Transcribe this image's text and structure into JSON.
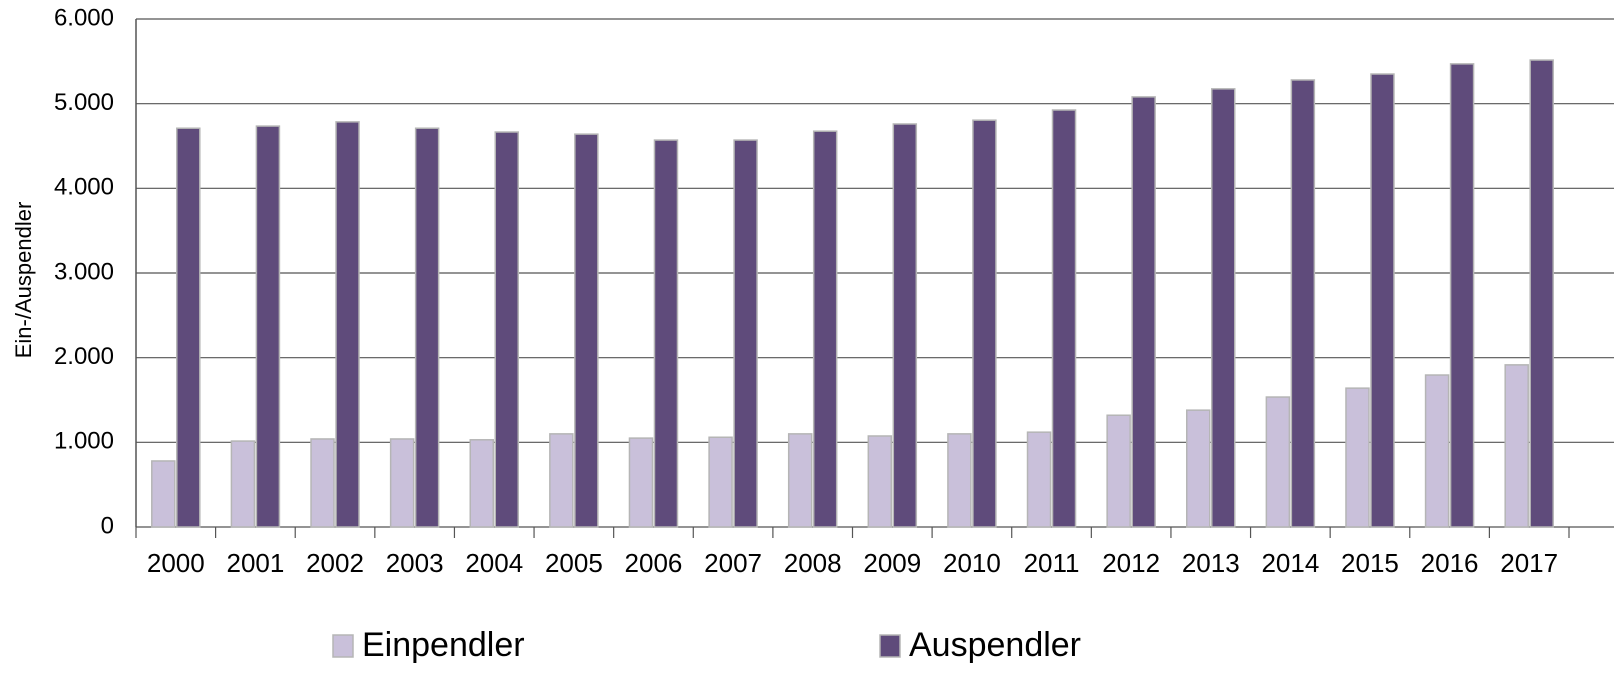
{
  "chart_data": {
    "type": "bar",
    "y_label": "Ein-/Auspendler",
    "categories": [
      "2000",
      "2001",
      "2002",
      "2003",
      "2004",
      "2005",
      "2006",
      "2007",
      "2008",
      "2009",
      "2010",
      "2011",
      "2012",
      "2013",
      "2014",
      "2015",
      "2016",
      "2017"
    ],
    "series": [
      {
        "name": "Einpendler",
        "color": "#c9c0da",
        "values": [
          780,
          1015,
          1040,
          1040,
          1030,
          1100,
          1050,
          1060,
          1100,
          1075,
          1100,
          1120,
          1320,
          1380,
          1535,
          1640,
          1795,
          1915
        ]
      },
      {
        "name": "Auspendler",
        "color": "#5f4b7b",
        "values": [
          4710,
          4735,
          4785,
          4710,
          4665,
          4640,
          4570,
          4570,
          4675,
          4760,
          4805,
          4925,
          5080,
          5175,
          5280,
          5350,
          5470,
          5515
        ]
      }
    ],
    "ylim": [
      0,
      6000
    ],
    "yticks": [
      0,
      {
        "value": 1000,
        "label": "1.000"
      },
      {
        "value": 2000,
        "label": "2.000"
      },
      {
        "value": 3000,
        "label": "3.000"
      },
      {
        "value": 4000,
        "label": "4.000"
      },
      {
        "value": 5000,
        "label": "5.000"
      },
      {
        "value": 6000,
        "label": "6.000"
      }
    ],
    "grid": true
  }
}
